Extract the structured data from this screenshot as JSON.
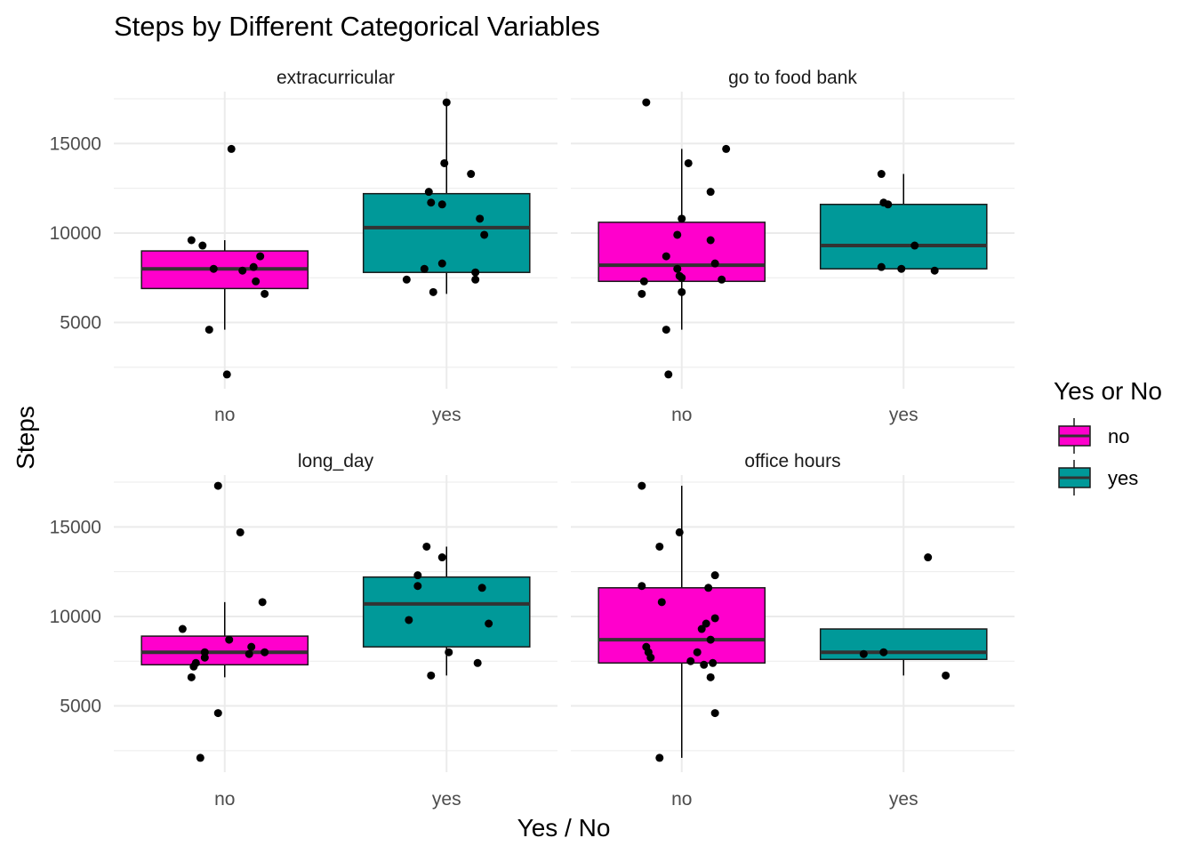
{
  "chart_data": {
    "type": "boxplot",
    "title": "Steps by Different Categorical Variables",
    "xlabel": "Yes / No",
    "ylabel": "Steps",
    "categories": [
      "no",
      "yes"
    ],
    "ylim": [
      1300,
      17900
    ],
    "yticks": [
      5000,
      10000,
      15000
    ],
    "legend": {
      "title": "Yes or No",
      "position": "right",
      "items": [
        {
          "label": "no",
          "color": "#FF00CC"
        },
        {
          "label": "yes",
          "color": "#009999"
        }
      ]
    },
    "colors": {
      "no": "#FF00CC",
      "yes": "#009999",
      "grid": "#EBEBEB",
      "median": "#333333"
    },
    "panels": [
      {
        "name": "extracurricular",
        "boxes": [
          {
            "category": "no",
            "whisker_low": 4600,
            "q1": 6900,
            "median": 8000,
            "q3": 9000,
            "whisker_high": 9600
          },
          {
            "category": "yes",
            "whisker_low": 6600,
            "q1": 7800,
            "median": 10300,
            "q3": 12200,
            "whisker_high": 17300
          }
        ],
        "points": [
          {
            "category": "no",
            "x": -0.15,
            "y": 9600
          },
          {
            "category": "no",
            "x": -0.1,
            "y": 9300
          },
          {
            "category": "no",
            "x": -0.05,
            "y": 8000
          },
          {
            "category": "no",
            "x": 0.03,
            "y": 14700
          },
          {
            "category": "no",
            "x": 0.08,
            "y": 7900
          },
          {
            "category": "no",
            "x": 0.13,
            "y": 8100
          },
          {
            "category": "no",
            "x": 0.16,
            "y": 8700
          },
          {
            "category": "no",
            "x": 0.14,
            "y": 7300
          },
          {
            "category": "no",
            "x": 0.18,
            "y": 6600
          },
          {
            "category": "no",
            "x": -0.07,
            "y": 4600
          },
          {
            "category": "no",
            "x": 0.01,
            "y": 2100
          },
          {
            "category": "yes",
            "x": -0.18,
            "y": 7400
          },
          {
            "category": "yes",
            "x": -0.08,
            "y": 12300
          },
          {
            "category": "yes",
            "x": -0.07,
            "y": 11700
          },
          {
            "category": "yes",
            "x": -0.02,
            "y": 11600
          },
          {
            "category": "yes",
            "x": -0.1,
            "y": 8000
          },
          {
            "category": "yes",
            "x": -0.02,
            "y": 8300
          },
          {
            "category": "yes",
            "x": -0.06,
            "y": 6700
          },
          {
            "category": "yes",
            "x": 0.0,
            "y": 17300
          },
          {
            "category": "yes",
            "x": -0.01,
            "y": 13900
          },
          {
            "category": "yes",
            "x": 0.11,
            "y": 13300
          },
          {
            "category": "yes",
            "x": 0.15,
            "y": 10800
          },
          {
            "category": "yes",
            "x": 0.17,
            "y": 9900
          },
          {
            "category": "yes",
            "x": 0.13,
            "y": 7800
          },
          {
            "category": "yes",
            "x": 0.13,
            "y": 7400
          }
        ]
      },
      {
        "name": "go to food bank",
        "boxes": [
          {
            "category": "no",
            "whisker_low": 4600,
            "q1": 7300,
            "median": 8200,
            "q3": 10600,
            "whisker_high": 14700
          },
          {
            "category": "yes",
            "whisker_low": 8000,
            "q1": 8000,
            "median": 9300,
            "q3": 11600,
            "whisker_high": 13300
          }
        ],
        "points": [
          {
            "category": "no",
            "x": -0.16,
            "y": 17300
          },
          {
            "category": "no",
            "x": 0.03,
            "y": 13900
          },
          {
            "category": "no",
            "x": 0.2,
            "y": 14700
          },
          {
            "category": "no",
            "x": 0.13,
            "y": 12300
          },
          {
            "category": "no",
            "x": 0.0,
            "y": 10800
          },
          {
            "category": "no",
            "x": -0.02,
            "y": 9900
          },
          {
            "category": "no",
            "x": 0.13,
            "y": 9600
          },
          {
            "category": "no",
            "x": -0.07,
            "y": 8700
          },
          {
            "category": "no",
            "x": 0.15,
            "y": 8300
          },
          {
            "category": "no",
            "x": -0.02,
            "y": 8000
          },
          {
            "category": "no",
            "x": -0.01,
            "y": 7600
          },
          {
            "category": "no",
            "x": 0.0,
            "y": 7500
          },
          {
            "category": "no",
            "x": 0.18,
            "y": 7400
          },
          {
            "category": "no",
            "x": -0.17,
            "y": 7300
          },
          {
            "category": "no",
            "x": -0.18,
            "y": 6600
          },
          {
            "category": "no",
            "x": 0.0,
            "y": 6700
          },
          {
            "category": "no",
            "x": -0.07,
            "y": 4600
          },
          {
            "category": "no",
            "x": -0.06,
            "y": 2100
          },
          {
            "category": "yes",
            "x": -0.1,
            "y": 13300
          },
          {
            "category": "yes",
            "x": -0.09,
            "y": 11700
          },
          {
            "category": "yes",
            "x": -0.07,
            "y": 11600
          },
          {
            "category": "yes",
            "x": 0.05,
            "y": 9300
          },
          {
            "category": "yes",
            "x": -0.1,
            "y": 8100
          },
          {
            "category": "yes",
            "x": -0.01,
            "y": 8000
          },
          {
            "category": "yes",
            "x": 0.14,
            "y": 7900
          }
        ]
      },
      {
        "name": "long_day",
        "boxes": [
          {
            "category": "no",
            "whisker_low": 6600,
            "q1": 7300,
            "median": 8000,
            "q3": 8900,
            "whisker_high": 10800
          },
          {
            "category": "yes",
            "whisker_low": 6700,
            "q1": 8300,
            "median": 10700,
            "q3": 12200,
            "whisker_high": 13900
          }
        ],
        "points": [
          {
            "category": "no",
            "x": -0.03,
            "y": 17300
          },
          {
            "category": "no",
            "x": 0.07,
            "y": 14700
          },
          {
            "category": "no",
            "x": 0.17,
            "y": 10800
          },
          {
            "category": "no",
            "x": -0.19,
            "y": 9300
          },
          {
            "category": "no",
            "x": 0.02,
            "y": 8700
          },
          {
            "category": "no",
            "x": 0.12,
            "y": 8300
          },
          {
            "category": "no",
            "x": 0.18,
            "y": 8000
          },
          {
            "category": "no",
            "x": 0.11,
            "y": 7900
          },
          {
            "category": "no",
            "x": -0.09,
            "y": 8000
          },
          {
            "category": "no",
            "x": -0.09,
            "y": 7700
          },
          {
            "category": "no",
            "x": -0.13,
            "y": 7400
          },
          {
            "category": "no",
            "x": -0.14,
            "y": 7200
          },
          {
            "category": "no",
            "x": -0.15,
            "y": 6600
          },
          {
            "category": "no",
            "x": -0.03,
            "y": 4600
          },
          {
            "category": "no",
            "x": -0.11,
            "y": 2100
          },
          {
            "category": "yes",
            "x": -0.09,
            "y": 13900
          },
          {
            "category": "yes",
            "x": -0.13,
            "y": 12300
          },
          {
            "category": "yes",
            "x": -0.13,
            "y": 11700
          },
          {
            "category": "yes",
            "x": -0.02,
            "y": 13300
          },
          {
            "category": "yes",
            "x": 0.16,
            "y": 11600
          },
          {
            "category": "yes",
            "x": -0.17,
            "y": 9800
          },
          {
            "category": "yes",
            "x": 0.19,
            "y": 9600
          },
          {
            "category": "yes",
            "x": 0.01,
            "y": 8000
          },
          {
            "category": "yes",
            "x": 0.14,
            "y": 7400
          },
          {
            "category": "yes",
            "x": -0.07,
            "y": 6700
          }
        ]
      },
      {
        "name": "office hours",
        "boxes": [
          {
            "category": "no",
            "whisker_low": 2100,
            "q1": 7400,
            "median": 8700,
            "q3": 11600,
            "whisker_high": 17300
          },
          {
            "category": "yes",
            "whisker_low": 6700,
            "q1": 7600,
            "median": 8000,
            "q3": 9300,
            "whisker_high": 9300
          }
        ],
        "points": [
          {
            "category": "no",
            "x": -0.18,
            "y": 17300
          },
          {
            "category": "no",
            "x": -0.1,
            "y": 13900
          },
          {
            "category": "no",
            "x": -0.01,
            "y": 14700
          },
          {
            "category": "no",
            "x": 0.15,
            "y": 12300
          },
          {
            "category": "no",
            "x": -0.18,
            "y": 11700
          },
          {
            "category": "no",
            "x": 0.12,
            "y": 11600
          },
          {
            "category": "no",
            "x": -0.09,
            "y": 10800
          },
          {
            "category": "no",
            "x": 0.15,
            "y": 9900
          },
          {
            "category": "no",
            "x": 0.11,
            "y": 9600
          },
          {
            "category": "no",
            "x": 0.09,
            "y": 9300
          },
          {
            "category": "no",
            "x": 0.13,
            "y": 8700
          },
          {
            "category": "no",
            "x": -0.16,
            "y": 8300
          },
          {
            "category": "no",
            "x": -0.15,
            "y": 8000
          },
          {
            "category": "no",
            "x": -0.14,
            "y": 7700
          },
          {
            "category": "no",
            "x": 0.07,
            "y": 8000
          },
          {
            "category": "no",
            "x": 0.04,
            "y": 7500
          },
          {
            "category": "no",
            "x": 0.1,
            "y": 7300
          },
          {
            "category": "no",
            "x": 0.14,
            "y": 7400
          },
          {
            "category": "no",
            "x": 0.13,
            "y": 6600
          },
          {
            "category": "no",
            "x": 0.15,
            "y": 4600
          },
          {
            "category": "no",
            "x": -0.1,
            "y": 2100
          },
          {
            "category": "yes",
            "x": 0.11,
            "y": 13300
          },
          {
            "category": "yes",
            "x": -0.18,
            "y": 7900
          },
          {
            "category": "yes",
            "x": -0.09,
            "y": 8000
          },
          {
            "category": "yes",
            "x": 0.19,
            "y": 6700
          }
        ]
      }
    ]
  }
}
